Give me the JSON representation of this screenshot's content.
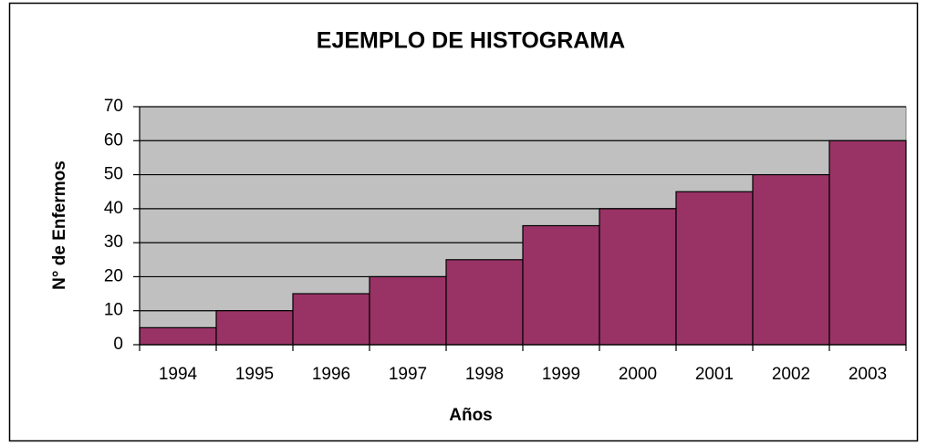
{
  "chart_data": {
    "type": "bar",
    "title": "EJEMPLO DE HISTOGRAMA",
    "x_label": "Años",
    "y_label": "N° de Enfermos",
    "categories": [
      "1994",
      "1995",
      "1996",
      "1997",
      "1998",
      "1999",
      "2000",
      "2001",
      "2002",
      "2003"
    ],
    "values": [
      5,
      10,
      15,
      20,
      25,
      35,
      40,
      45,
      50,
      60
    ],
    "color": "#993366",
    "background": "#c0c0c0",
    "ylim": [
      0,
      70
    ],
    "yticks": [
      0,
      10,
      20,
      30,
      40,
      50,
      60,
      70
    ],
    "grid": true
  }
}
